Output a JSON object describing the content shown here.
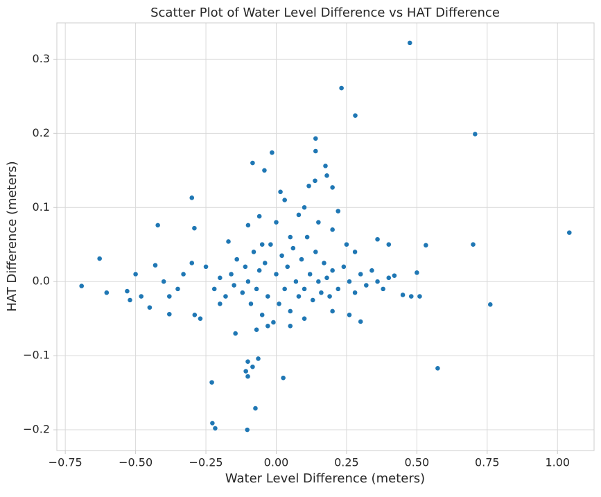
{
  "chart_data": {
    "type": "scatter",
    "title": "Scatter Plot of Water Level Difference vs HAT Difference",
    "x_label": "Water Level Difference (meters)",
    "y_label": "HAT Difference (meters)",
    "color": "#1f77b4",
    "grid": true,
    "xlim": [
      -0.78,
      1.13
    ],
    "ylim": [
      -0.228,
      0.349
    ],
    "xticks": [
      {
        "value": -0.75,
        "label": "−0.75"
      },
      {
        "value": -0.5,
        "label": "−0.50"
      },
      {
        "value": -0.25,
        "label": "−0.25"
      },
      {
        "value": 0,
        "label": "0.00"
      },
      {
        "value": 0.25,
        "label": "0.25"
      },
      {
        "value": 0.5,
        "label": "0.50"
      },
      {
        "value": 0.75,
        "label": "0.75"
      },
      {
        "value": 1,
        "label": "1.00"
      }
    ],
    "yticks": [
      {
        "value": -0.2,
        "label": "−0.2"
      },
      {
        "value": -0.1,
        "label": "−0.1"
      },
      {
        "value": 0,
        "label": "0.0"
      },
      0.1,
      0.2,
      0.3
    ],
    "x": [
      0.475,
      0.232,
      0.281,
      0.707,
      0.14,
      0.14,
      -0.015,
      -0.084,
      -0.042,
      0.175,
      0.18,
      -0.3,
      0.015,
      0.116,
      0.138,
      0.2,
      -0.421,
      -0.291,
      1.042,
      0.7,
      0.532,
      -0.692,
      -0.628,
      -0.603,
      0.761,
      0.574,
      0.025,
      -0.145,
      -0.108,
      -0.101,
      -0.101,
      -0.084,
      -0.064,
      -0.074,
      -0.229,
      -0.227,
      -0.217,
      -0.103,
      -0.25,
      -0.22,
      -0.2,
      -0.18,
      -0.16,
      -0.15,
      -0.14,
      -0.12,
      -0.11,
      -0.1,
      -0.09,
      -0.08,
      -0.07,
      -0.06,
      -0.05,
      -0.04,
      -0.03,
      -0.02,
      -0.01,
      0.0,
      0.01,
      0.02,
      0.03,
      0.04,
      0.05,
      0.06,
      0.07,
      0.08,
      0.09,
      0.1,
      0.11,
      0.12,
      0.13,
      0.14,
      0.15,
      0.16,
      0.17,
      0.18,
      0.19,
      0.2,
      0.22,
      0.24,
      0.26,
      0.28,
      0.3,
      0.32,
      0.34,
      0.36,
      0.38,
      0.4,
      0.42,
      0.45,
      0.48,
      0.5,
      0.51,
      0.4,
      0.36,
      0.3,
      0.26,
      0.2,
      0.1,
      0.05,
      -0.03,
      -0.07,
      0.08,
      0.0,
      -0.06,
      -0.1,
      -0.17,
      -0.3,
      -0.33,
      -0.35,
      -0.38,
      -0.4,
      -0.43,
      -0.45,
      -0.48,
      -0.5,
      -0.52,
      -0.53,
      -0.27,
      -0.38,
      -0.29,
      0.1,
      0.15,
      0.2,
      0.22,
      0.03,
      0.25,
      0.28,
      -0.2,
      0.05,
      -0.05
    ],
    "y": [
      0.322,
      0.261,
      0.224,
      0.199,
      0.193,
      0.176,
      0.174,
      0.16,
      0.15,
      0.156,
      0.143,
      0.113,
      0.121,
      0.129,
      0.136,
      0.127,
      0.076,
      0.072,
      0.066,
      0.05,
      0.049,
      -0.006,
      0.031,
      -0.015,
      -0.031,
      -0.117,
      -0.13,
      -0.07,
      -0.121,
      -0.128,
      -0.108,
      -0.115,
      -0.104,
      -0.171,
      -0.136,
      -0.191,
      -0.198,
      -0.2,
      0.02,
      -0.01,
      0.005,
      -0.02,
      0.01,
      -0.005,
      0.03,
      -0.015,
      0.02,
      0.0,
      -0.03,
      0.04,
      -0.01,
      0.015,
      -0.045,
      0.025,
      -0.02,
      0.05,
      -0.055,
      0.01,
      -0.03,
      0.035,
      -0.01,
      0.02,
      -0.04,
      0.045,
      0.0,
      -0.02,
      0.03,
      -0.01,
      0.06,
      0.01,
      -0.025,
      0.04,
      0.0,
      -0.015,
      0.025,
      0.005,
      -0.02,
      0.015,
      -0.01,
      0.02,
      0.0,
      -0.015,
      0.01,
      -0.005,
      0.015,
      0.0,
      -0.01,
      0.005,
      0.008,
      -0.018,
      -0.02,
      0.012,
      -0.02,
      0.05,
      0.057,
      -0.054,
      -0.045,
      -0.04,
      -0.05,
      -0.06,
      -0.06,
      -0.065,
      0.09,
      0.08,
      0.088,
      0.076,
      0.054,
      0.025,
      0.01,
      -0.01,
      -0.02,
      0.0,
      0.022,
      -0.035,
      -0.02,
      0.01,
      -0.025,
      -0.013,
      -0.05,
      -0.044,
      -0.045,
      0.1,
      0.08,
      0.07,
      0.095,
      0.11,
      0.05,
      0.04,
      -0.03,
      0.06,
      0.05
    ]
  }
}
